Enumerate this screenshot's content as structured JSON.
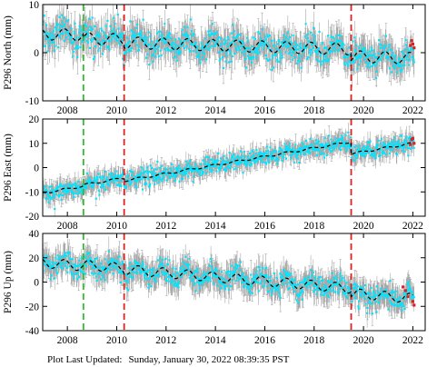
{
  "colors": {
    "observed": "#00e5ff",
    "error_bar": "#a8a8a8",
    "model": "#000000",
    "event_green": "#33b833",
    "event_red": "#dd2222",
    "recent_points": "#dd2222"
  },
  "chart_data": [
    {
      "type": "scatter",
      "ylabel": "P296 North (mm)",
      "xlim": [
        2007.0,
        2022.5
      ],
      "ylim": [
        -10,
        10
      ],
      "x_ticks": [
        2008,
        2010,
        2012,
        2014,
        2016,
        2018,
        2020,
        2022
      ],
      "y_ticks": [
        -10,
        0,
        10
      ],
      "events": [
        {
          "x": 2008.65,
          "color": "green"
        },
        {
          "x": 2010.3,
          "color": "red"
        },
        {
          "x": 2019.5,
          "color": "red"
        }
      ],
      "model": {
        "x0": 2007.0,
        "x1": 2022.0,
        "level_before": 3.9,
        "trend_per_year": -0.15,
        "offsets": [
          {
            "x": 2008.65,
            "dy": -0.7
          },
          {
            "x": 2010.3,
            "dy": -0.6
          },
          {
            "x": 2019.5,
            "dy": -1.5
          }
        ],
        "seasonal_amplitude": 1.2
      },
      "scatter_sd": 1.6,
      "error_bar_half_range": 2.6,
      "recent_points": [
        [
          2021.9,
          1.5
        ],
        [
          2021.95,
          2.5
        ],
        [
          2022.0,
          1.8
        ],
        [
          2022.05,
          1.0
        ]
      ]
    },
    {
      "type": "scatter",
      "ylabel": "P296 East (mm)",
      "xlim": [
        2007.0,
        2022.5
      ],
      "ylim": [
        -20,
        20
      ],
      "x_ticks": [
        2008,
        2010,
        2012,
        2014,
        2016,
        2018,
        2020,
        2022
      ],
      "y_ticks": [
        -20,
        -10,
        0,
        10,
        20
      ],
      "events": [
        {
          "x": 2008.65,
          "color": "green"
        },
        {
          "x": 2010.3,
          "color": "red"
        },
        {
          "x": 2019.5,
          "color": "red"
        }
      ],
      "model": {
        "x0": 2007.0,
        "x1": 2022.0,
        "level_before": -10.5,
        "trend_per_year": 1.75,
        "offsets": [
          {
            "x": 2008.65,
            "dy": 0.5
          },
          {
            "x": 2010.3,
            "dy": -1.2
          },
          {
            "x": 2019.5,
            "dy": -5.0
          }
        ],
        "seasonal_amplitude": 0.4
      },
      "scatter_sd": 1.8,
      "error_bar_half_range": 3.2,
      "recent_points": [
        [
          2021.9,
          9.5
        ],
        [
          2021.95,
          11.5
        ],
        [
          2022.0,
          12.0
        ],
        [
          2022.05,
          10.0
        ]
      ]
    },
    {
      "type": "scatter",
      "ylabel": "P296 Up (mm)",
      "xlim": [
        2007.0,
        2022.5
      ],
      "ylim": [
        -40,
        40
      ],
      "x_ticks": [
        2008,
        2010,
        2012,
        2014,
        2016,
        2018,
        2020,
        2022
      ],
      "y_ticks": [
        -40,
        -20,
        0,
        20,
        40
      ],
      "events": [
        {
          "x": 2008.65,
          "color": "green"
        },
        {
          "x": 2010.3,
          "color": "red"
        },
        {
          "x": 2019.5,
          "color": "red"
        }
      ],
      "model": {
        "x0": 2007.0,
        "x1": 2022.0,
        "level_before": 16.0,
        "trend_per_year": -1.7,
        "offsets": [
          {
            "x": 2008.65,
            "dy": 1.0
          },
          {
            "x": 2010.3,
            "dy": -1.0
          },
          {
            "x": 2019.5,
            "dy": -4.0
          }
        ],
        "seasonal_amplitude": 4.0
      },
      "scatter_sd": 4.5,
      "error_bar_half_range": 9.0,
      "recent_points": [
        [
          2021.6,
          -4
        ],
        [
          2021.7,
          -7
        ],
        [
          2021.8,
          -12
        ],
        [
          2022.0,
          -16
        ],
        [
          2022.05,
          -19
        ]
      ]
    }
  ],
  "footer": {
    "label": "Plot Last Updated:",
    "timestamp": "Sunday, January 30, 2022 08:39:35 PST"
  }
}
